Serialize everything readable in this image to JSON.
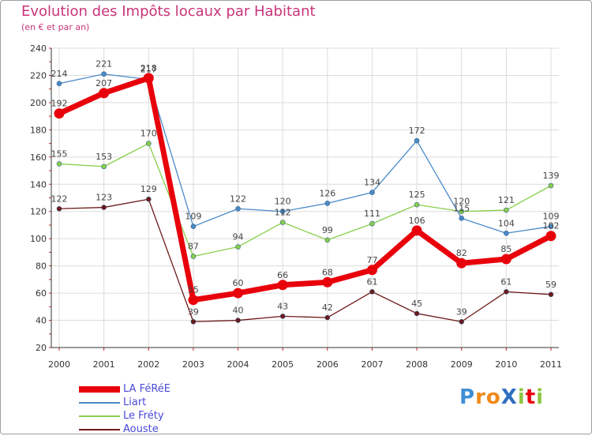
{
  "title": "Evolution des Impôts locaux par Habitant",
  "subtitle": "(en € et par an)",
  "logo_text": "ProXiti",
  "chart_data": {
    "type": "line",
    "title": "Evolution des Impôts locaux par Habitant",
    "subtitle": "(en € et par an)",
    "xlabel": "",
    "ylabel": "",
    "x": [
      "2000",
      "2001",
      "2002",
      "2003",
      "2004",
      "2005",
      "2006",
      "2007",
      "2008",
      "2009",
      "2010",
      "2011"
    ],
    "ylim": [
      20,
      240
    ],
    "yticks": [
      "20",
      "40",
      "60",
      "80",
      "100",
      "120",
      "140",
      "160",
      "180",
      "200",
      "220",
      "240"
    ],
    "grid": true,
    "legend_position": "bottom-left",
    "series": [
      {
        "name": "LA FéRéE",
        "color": "#e8000b",
        "values": [
          192,
          207,
          218,
          55,
          60,
          66,
          68,
          77,
          106,
          82,
          85,
          102
        ]
      },
      {
        "name": "Liart",
        "color": "#4a8ac8",
        "values": [
          214,
          221,
          217,
          109,
          122,
          120,
          126,
          134,
          172,
          115,
          104,
          109
        ]
      },
      {
        "name": "Le Fréty",
        "color": "#86cf4a",
        "values": [
          155,
          153,
          170,
          87,
          94,
          112,
          99,
          111,
          125,
          120,
          121,
          139
        ]
      },
      {
        "name": "Aouste",
        "color": "#6e1a1a",
        "values": [
          122,
          123,
          129,
          39,
          40,
          43,
          42,
          61,
          45,
          39,
          61,
          59
        ]
      }
    ]
  }
}
